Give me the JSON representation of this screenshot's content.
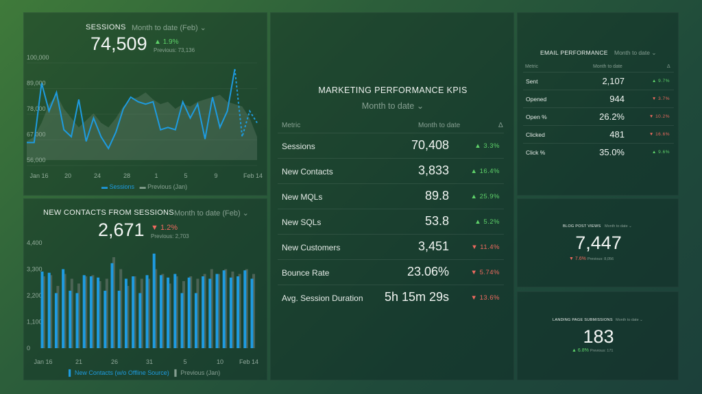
{
  "sessions": {
    "title": "SESSIONS",
    "range": "Month to date (Feb)",
    "value": "74,509",
    "delta": "1.9%",
    "previous": "Previous: 73,136",
    "legend_current": "Sessions",
    "legend_previous": "Previous (Jan)"
  },
  "contacts": {
    "title": "NEW CONTACTS FROM SESSIONS",
    "range": "Month to date (Feb)",
    "value": "2,671",
    "delta": "1.2%",
    "previous": "Previous: 2,703",
    "legend_current": "New Contacts (w/o Offline Source)",
    "legend_previous": "Previous (Jan)"
  },
  "kpis": {
    "title": "MARKETING PERFORMANCE KPIS",
    "range": "Month to date",
    "col_metric": "Metric",
    "col_value": "Month to date",
    "col_delta": "Δ",
    "rows": [
      {
        "metric": "Sessions",
        "value": "70,408",
        "delta": "3.3%",
        "dir": "up"
      },
      {
        "metric": "New Contacts",
        "value": "3,833",
        "delta": "16.4%",
        "dir": "up"
      },
      {
        "metric": "New MQLs",
        "value": "89.8",
        "delta": "25.9%",
        "dir": "up"
      },
      {
        "metric": "New SQLs",
        "value": "53.8",
        "delta": "5.2%",
        "dir": "up"
      },
      {
        "metric": "New Customers",
        "value": "3,451",
        "delta": "11.4%",
        "dir": "down"
      },
      {
        "metric": "Bounce Rate",
        "value": "23.06%",
        "delta": "5.74%",
        "dir": "down"
      },
      {
        "metric": "Avg. Session Duration",
        "value": "5h 15m 29s",
        "delta": "13.6%",
        "dir": "down"
      }
    ]
  },
  "email": {
    "title": "EMAIL PERFORMANCE",
    "range": "Month to date",
    "col_metric": "Metric",
    "col_value": "Month to date",
    "col_delta": "Δ",
    "rows": [
      {
        "metric": "Sent",
        "value": "2,107",
        "delta": "9.7%",
        "dir": "up"
      },
      {
        "metric": "Opened",
        "value": "944",
        "delta": "3.7%",
        "dir": "down"
      },
      {
        "metric": "Open %",
        "value": "26.2%",
        "delta": "10.2%",
        "dir": "down"
      },
      {
        "metric": "Clicked",
        "value": "481",
        "delta": "16.6%",
        "dir": "down"
      },
      {
        "metric": "Click %",
        "value": "35.0%",
        "delta": "9.6%",
        "dir": "up"
      }
    ]
  },
  "blog": {
    "title": "BLOG POST VIEWS",
    "range": "Month to date",
    "value": "7,447",
    "delta": "7.6%",
    "previous": "Previous: 8,056"
  },
  "landing": {
    "title": "LANDING PAGE SUBMISSIONS",
    "range": "Month to date",
    "value": "183",
    "delta": "6.8%",
    "previous": "Previous: 171"
  },
  "colors": {
    "accent": "#1e9be0",
    "previous": "#5c6e63",
    "up": "#5fd36a",
    "down": "#f06a5f"
  },
  "chart_data": [
    {
      "type": "line",
      "title": "SESSIONS",
      "ylim": [
        56000,
        100000
      ],
      "y_ticks": [
        "100,000",
        "89,000",
        "78,000",
        "67,000",
        "56,000"
      ],
      "x_ticks": [
        "Jan 16",
        "20",
        "24",
        "28",
        "1",
        "5",
        "9",
        "Feb 14"
      ],
      "series": [
        {
          "name": "Sessions",
          "values": [
            63500,
            63500,
            89000,
            77000,
            85000,
            69000,
            66000,
            82000,
            64000,
            74000,
            66000,
            61000,
            68000,
            78000,
            83000,
            81000,
            80000,
            81000,
            69000,
            70000,
            69000,
            81000,
            74000,
            80000,
            65000,
            83000,
            70000,
            77000,
            95000,
            66000,
            77000,
            72000
          ]
        },
        {
          "name": "Previous (Jan)",
          "values": [
            64000,
            66000,
            72000,
            80000,
            84000,
            78000,
            74000,
            70000,
            73000,
            76000,
            72000,
            70000,
            74000,
            79000,
            82000,
            83000,
            85000,
            82000,
            80000,
            81000,
            78000,
            80000,
            79000,
            81000,
            82000,
            83000,
            84000,
            81000,
            80000,
            79000,
            74000,
            66000
          ]
        }
      ]
    },
    {
      "type": "bar",
      "title": "NEW CONTACTS FROM SESSIONS",
      "ylim": [
        0,
        4400
      ],
      "y_ticks": [
        "4,400",
        "3,300",
        "2,200",
        "1,100",
        "0"
      ],
      "x_ticks": [
        "Jan 16",
        "21",
        "26",
        "31",
        "5",
        "10",
        "Feb 14"
      ],
      "series": [
        {
          "name": "New Contacts (w/o Offline Source)",
          "values": [
            3200,
            3150,
            2300,
            3300,
            2400,
            2300,
            3050,
            3000,
            2950,
            2400,
            3550,
            2400,
            2900,
            3000,
            2300,
            3050,
            3950,
            3050,
            2950,
            3100,
            2300,
            2950,
            2300,
            3000,
            2900,
            3100,
            3250,
            2950,
            3000,
            3250,
            2900
          ]
        },
        {
          "name": "Previous (Jan)",
          "values": [
            3000,
            3050,
            2600,
            3100,
            2900,
            2700,
            3000,
            3050,
            2800,
            2900,
            3800,
            3300,
            2600,
            3000,
            2900,
            2900,
            3300,
            3100,
            2700,
            3000,
            2800,
            3000,
            2900,
            3100,
            3300,
            3100,
            3300,
            3200,
            3100,
            3300,
            3100
          ]
        }
      ]
    }
  ]
}
